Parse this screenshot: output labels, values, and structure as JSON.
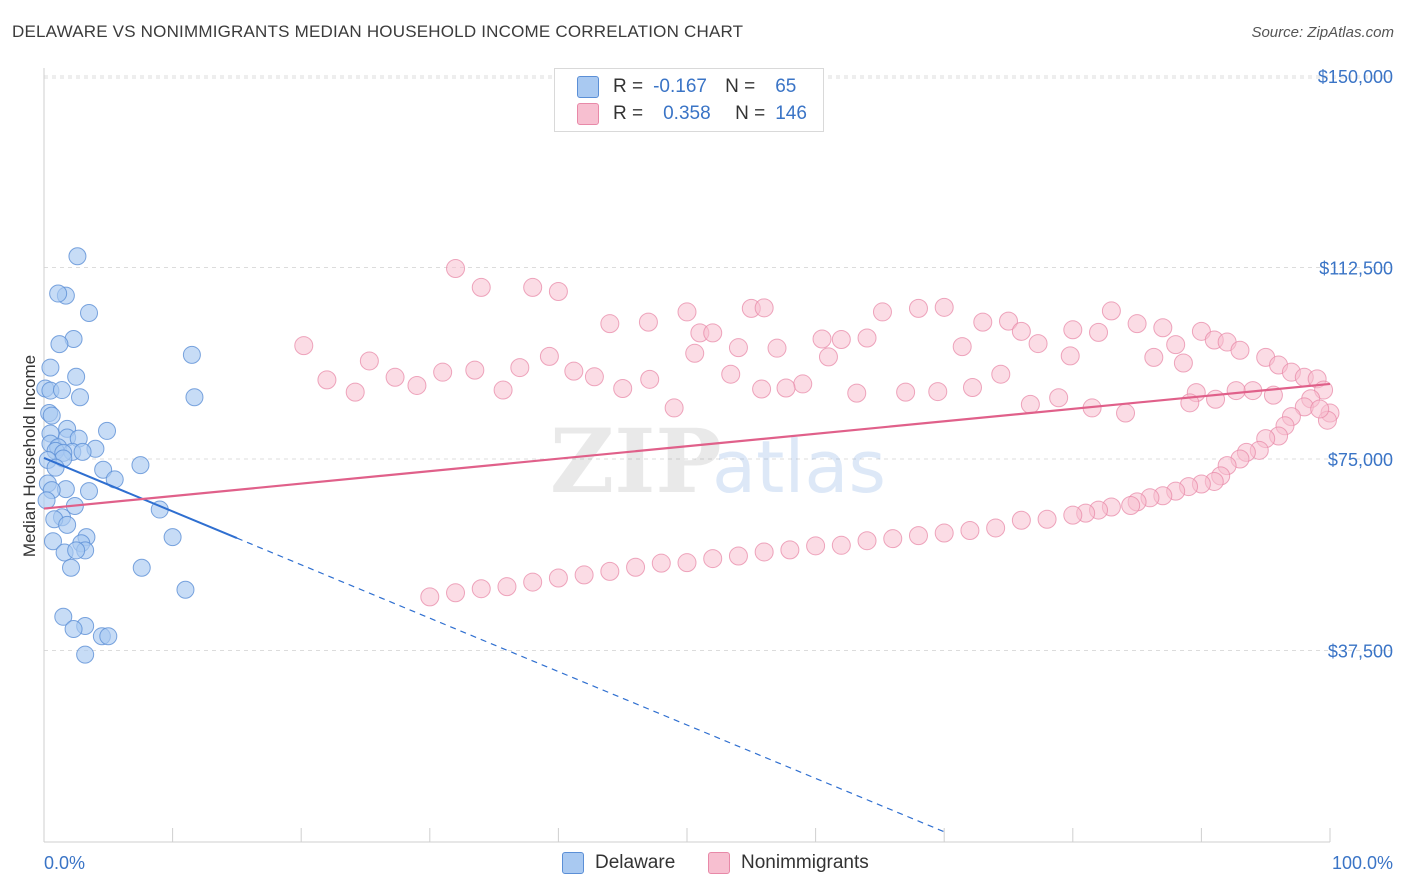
{
  "title": "DELAWARE VS NONIMMIGRANTS MEDIAN HOUSEHOLD INCOME CORRELATION CHART",
  "source": "Source: ZipAtlas.com",
  "watermark": {
    "zip": "ZIP",
    "atlas": "atlas"
  },
  "legend": {
    "r_label": "R =",
    "n_label": "N =",
    "rows": [
      {
        "r": "-0.167",
        "n": "65",
        "color": "#a9c9f1",
        "border": "#5b8fd6"
      },
      {
        "r": "0.358",
        "n": "146",
        "color": "#f7bfd0",
        "border": "#e889a8"
      }
    ]
  },
  "chart_data": {
    "type": "scatter",
    "title": "DELAWARE VS NONIMMIGRANTS MEDIAN HOUSEHOLD INCOME CORRELATION CHART",
    "xlabel": "",
    "ylabel": "Median Household Income",
    "xlim": [
      0,
      100
    ],
    "ylim": [
      0,
      157500
    ],
    "x_tick_labels": [
      "0.0%",
      "100.0%"
    ],
    "y_ticks": [
      37500,
      75000,
      112500,
      150000
    ],
    "y_tick_labels": [
      "$37,500",
      "$75,000",
      "$112,500",
      "$150,000"
    ],
    "series": [
      {
        "name": "Delaware",
        "color": "#5b8fd6",
        "fill": "#a9c9f1",
        "points": [
          [
            2.6,
            114700
          ],
          [
            1.7,
            107000
          ],
          [
            1.1,
            107400
          ],
          [
            3.5,
            103600
          ],
          [
            2.3,
            98500
          ],
          [
            1.2,
            97500
          ],
          [
            11.5,
            95400
          ],
          [
            0.5,
            92900
          ],
          [
            2.5,
            91100
          ],
          [
            0.1,
            88800
          ],
          [
            0.5,
            88400
          ],
          [
            1.4,
            88500
          ],
          [
            2.8,
            87100
          ],
          [
            11.7,
            87100
          ],
          [
            0.4,
            84000
          ],
          [
            0.6,
            83500
          ],
          [
            1.8,
            80900
          ],
          [
            4.9,
            80500
          ],
          [
            0.5,
            80000
          ],
          [
            1.8,
            79200
          ],
          [
            2.7,
            79000
          ],
          [
            0.5,
            78000
          ],
          [
            1.1,
            77300
          ],
          [
            0.9,
            76600
          ],
          [
            2.2,
            76400
          ],
          [
            4.0,
            77000
          ],
          [
            3.0,
            76400
          ],
          [
            1.5,
            76200
          ],
          [
            1.5,
            75100
          ],
          [
            0.3,
            74800
          ],
          [
            7.5,
            73800
          ],
          [
            0.9,
            73300
          ],
          [
            4.6,
            72900
          ],
          [
            5.5,
            71000
          ],
          [
            0.3,
            70200
          ],
          [
            1.7,
            69100
          ],
          [
            0.6,
            68900
          ],
          [
            3.5,
            68700
          ],
          [
            0.2,
            66900
          ],
          [
            9.0,
            65100
          ],
          [
            2.4,
            65800
          ],
          [
            1.4,
            63600
          ],
          [
            0.8,
            63200
          ],
          [
            1.8,
            62100
          ],
          [
            10.0,
            59700
          ],
          [
            0.7,
            58900
          ],
          [
            3.3,
            59700
          ],
          [
            2.9,
            58500
          ],
          [
            3.2,
            57100
          ],
          [
            1.6,
            56700
          ],
          [
            2.5,
            57100
          ],
          [
            7.6,
            53700
          ],
          [
            2.1,
            53700
          ],
          [
            11.0,
            49400
          ],
          [
            1.5,
            44100
          ],
          [
            3.2,
            42300
          ],
          [
            2.3,
            41700
          ],
          [
            4.5,
            40300
          ],
          [
            5.0,
            40300
          ],
          [
            3.2,
            36700
          ]
        ]
      },
      {
        "name": "Nonimmigrants",
        "color": "#e889a8",
        "fill": "#f7bfd0",
        "points": [
          [
            32.0,
            112300
          ],
          [
            34.0,
            108600
          ],
          [
            38.0,
            108600
          ],
          [
            40.0,
            107800
          ],
          [
            44.0,
            101500
          ],
          [
            47.0,
            101800
          ],
          [
            50.0,
            103800
          ],
          [
            51.0,
            99700
          ],
          [
            55.0,
            104500
          ],
          [
            56.0,
            104600
          ],
          [
            52.0,
            99700
          ],
          [
            54.0,
            96800
          ],
          [
            57.0,
            96700
          ],
          [
            61.0,
            95000
          ],
          [
            62.0,
            98400
          ],
          [
            64.0,
            98700
          ],
          [
            68.0,
            104500
          ],
          [
            70.0,
            104700
          ],
          [
            73.0,
            101800
          ],
          [
            75.0,
            102000
          ],
          [
            76.0,
            100000
          ],
          [
            80.0,
            100300
          ],
          [
            82.0,
            99800
          ],
          [
            83.0,
            104000
          ],
          [
            85.0,
            101500
          ],
          [
            87.0,
            100700
          ],
          [
            88.0,
            97400
          ],
          [
            90.0,
            100000
          ],
          [
            91.0,
            98300
          ],
          [
            92.0,
            97900
          ],
          [
            93.0,
            96300
          ],
          [
            95.0,
            94900
          ],
          [
            96.0,
            93400
          ],
          [
            97.0,
            92000
          ],
          [
            98.0,
            91000
          ],
          [
            99.0,
            90700
          ],
          [
            99.5,
            88500
          ],
          [
            98.5,
            86800
          ],
          [
            98.0,
            85200
          ],
          [
            97.0,
            83300
          ],
          [
            96.5,
            81500
          ],
          [
            96.0,
            79500
          ],
          [
            95.0,
            79000
          ],
          [
            94.5,
            76700
          ],
          [
            93.5,
            76300
          ],
          [
            93.0,
            75000
          ],
          [
            92.0,
            73700
          ],
          [
            91.5,
            71700
          ],
          [
            91.0,
            70600
          ],
          [
            90.0,
            70100
          ],
          [
            89.0,
            69600
          ],
          [
            88.0,
            68700
          ],
          [
            87.0,
            67800
          ],
          [
            86.0,
            67400
          ],
          [
            85.0,
            66600
          ],
          [
            84.5,
            65900
          ],
          [
            83.0,
            65600
          ],
          [
            82.0,
            65000
          ],
          [
            81.0,
            64400
          ],
          [
            80.0,
            64000
          ],
          [
            78.0,
            63200
          ],
          [
            76.0,
            63000
          ],
          [
            74.0,
            61500
          ],
          [
            72.0,
            61000
          ],
          [
            70.0,
            60500
          ],
          [
            68.0,
            60000
          ],
          [
            66.0,
            59400
          ],
          [
            64.0,
            59000
          ],
          [
            62.0,
            58100
          ],
          [
            60.0,
            58000
          ],
          [
            58.0,
            57200
          ],
          [
            56.0,
            56800
          ],
          [
            54.0,
            56000
          ],
          [
            52.0,
            55500
          ],
          [
            50.0,
            54700
          ],
          [
            48.0,
            54600
          ],
          [
            46.0,
            53800
          ],
          [
            44.0,
            53000
          ],
          [
            42.0,
            52300
          ],
          [
            40.0,
            51700
          ],
          [
            38.0,
            50900
          ],
          [
            36.0,
            50000
          ],
          [
            34.0,
            49600
          ],
          [
            32.0,
            48800
          ],
          [
            30.0,
            48000
          ]
        ],
        "points_extra": [
          [
            60.5,
            98500
          ],
          [
            65.2,
            103800
          ],
          [
            71.4,
            97000
          ],
          [
            77.3,
            97600
          ],
          [
            79.8,
            95200
          ],
          [
            86.3,
            94900
          ],
          [
            88.6,
            93800
          ],
          [
            89.6,
            88000
          ],
          [
            94.0,
            88400
          ],
          [
            100.0,
            84000
          ],
          [
            99.8,
            82600
          ],
          [
            99.2,
            84800
          ],
          [
            95.6,
            87500
          ],
          [
            92.7,
            88400
          ],
          [
            91.1,
            86700
          ],
          [
            89.1,
            86000
          ],
          [
            84.1,
            84000
          ],
          [
            81.5,
            85000
          ],
          [
            78.9,
            87000
          ],
          [
            76.7,
            85700
          ],
          [
            74.4,
            91600
          ],
          [
            72.2,
            89000
          ],
          [
            69.5,
            88200
          ],
          [
            67.0,
            88100
          ],
          [
            63.2,
            87900
          ],
          [
            59.0,
            89700
          ],
          [
            57.7,
            88900
          ],
          [
            55.8,
            88700
          ],
          [
            53.4,
            91600
          ],
          [
            50.6,
            95700
          ],
          [
            49.0,
            85000
          ],
          [
            47.1,
            90600
          ],
          [
            45.0,
            88800
          ],
          [
            42.8,
            91100
          ],
          [
            41.2,
            92200
          ],
          [
            39.3,
            95100
          ],
          [
            37.0,
            92900
          ],
          [
            35.7,
            88500
          ],
          [
            33.5,
            92400
          ],
          [
            31.0,
            92000
          ],
          [
            29.0,
            89400
          ],
          [
            27.3,
            91000
          ],
          [
            25.3,
            94200
          ],
          [
            24.2,
            88100
          ],
          [
            22.0,
            90500
          ],
          [
            20.2,
            97200
          ]
        ],
        "trend_solid": [
          [
            0,
            65300
          ],
          [
            100,
            89700
          ]
        ],
        "note": "Delaware trend: solid from 0% to 15%, dashed extrapolation beyond"
      }
    ],
    "trend_lines": [
      {
        "series": "Delaware",
        "from": [
          0,
          75200
        ],
        "to": [
          70,
          2000
        ],
        "solid_until_x": 15
      },
      {
        "series": "Nonimmigrants",
        "from": [
          0,
          65300
        ],
        "to": [
          100,
          89700
        ],
        "solid_until_x": 100
      }
    ]
  },
  "bottom_legend": [
    {
      "label": "Delaware",
      "color": "#a9c9f1",
      "border": "#5b8fd6"
    },
    {
      "label": "Nonimmigrants",
      "color": "#f7bfd0",
      "border": "#e889a8"
    }
  ]
}
